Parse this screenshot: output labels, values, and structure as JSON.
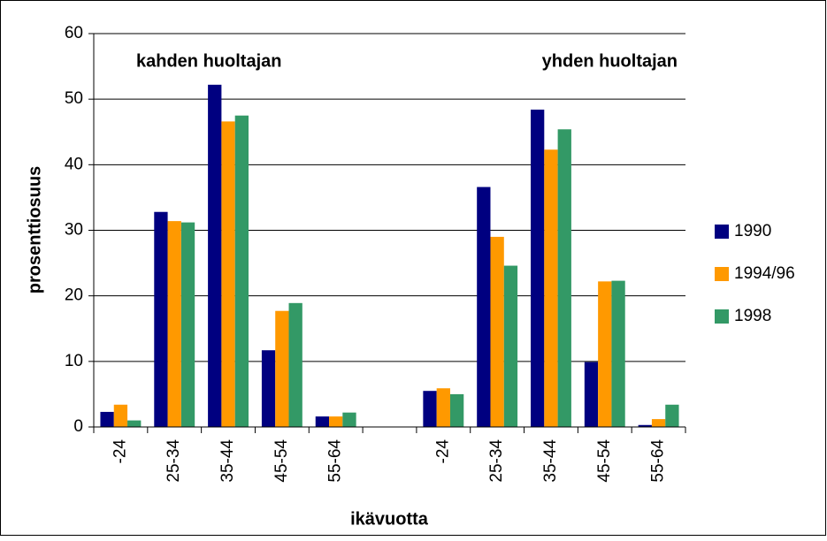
{
  "chart_data": {
    "type": "bar",
    "y_label": "prosenttiosuus",
    "x_label": "ikävuotta",
    "annotations": [
      "kahden huoltajan",
      "yhden huoltajan"
    ],
    "categories": [
      "-24",
      "25-34",
      "35-44",
      "45-54",
      "55-64",
      null,
      "-24",
      "25-34",
      "35-44",
      "45-54",
      "55-64"
    ],
    "series": [
      {
        "name": "1990",
        "color": "#000080",
        "values": [
          2.3,
          32.8,
          52.2,
          11.7,
          1.6,
          null,
          5.5,
          36.6,
          48.4,
          9.9,
          0.3
        ]
      },
      {
        "name": "1994/96",
        "color": "#ff9900",
        "values": [
          3.4,
          31.4,
          46.6,
          17.7,
          1.6,
          null,
          5.9,
          29.0,
          42.3,
          22.2,
          1.2
        ]
      },
      {
        "name": "1998",
        "color": "#339966",
        "values": [
          1.0,
          31.2,
          47.5,
          18.9,
          2.2,
          null,
          5.0,
          24.6,
          45.4,
          22.3,
          3.4
        ]
      }
    ],
    "ylim": [
      0,
      60
    ],
    "yticks": [
      0,
      10,
      20,
      30,
      40,
      50,
      60
    ],
    "grid": true,
    "legend": "right"
  }
}
